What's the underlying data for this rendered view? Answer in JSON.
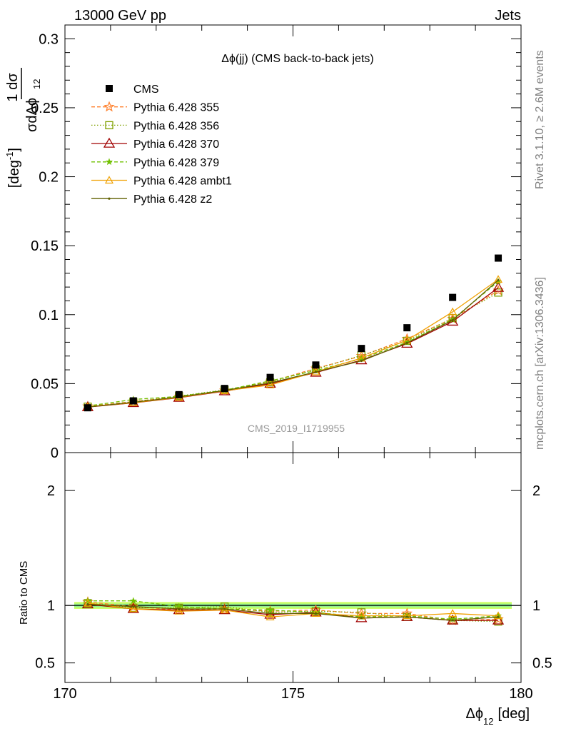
{
  "header": {
    "left": "13000 GeV pp",
    "right": "Jets",
    "side_top": "Rivet 3.1.10, ≥ 2.6M events",
    "side_bottom": "mcplots.cern.ch [arXiv:1306.3436]"
  },
  "chart_data": [
    {
      "type": "scatter",
      "panel": "main",
      "title": "Δϕ(jj) (CMS back-to-back jets)",
      "watermark": "CMS_2019_I1719955",
      "ylabel": {
        "prefix": "1",
        "num": "dσ",
        "den": "σdΔϕ",
        "den_sub": "12",
        "unit": "[deg",
        "unit_sup": "-1",
        "unit_close": "]"
      },
      "ylim": [
        0,
        0.31
      ],
      "xlim": [
        170,
        180
      ],
      "yticks": [
        {
          "v": 0,
          "label": "0"
        },
        {
          "v": 0.05,
          "label": "0.05"
        },
        {
          "v": 0.1,
          "label": "0.1"
        },
        {
          "v": 0.15,
          "label": "0.15"
        },
        {
          "v": 0.2,
          "label": "0.2"
        },
        {
          "v": 0.25,
          "label": "0.25"
        },
        {
          "v": 0.3,
          "label": "0.3"
        }
      ],
      "x": [
        170.5,
        171.5,
        172.5,
        173.5,
        174.5,
        175.5,
        176.5,
        177.5,
        178.5,
        179.5
      ],
      "series": [
        {
          "name": "CMS",
          "color": "#000000",
          "marker": "square",
          "line": "none",
          "values": [
            0.0325,
            0.0375,
            0.042,
            0.0465,
            0.0545,
            0.0635,
            0.0755,
            0.0905,
            0.1125,
            0.141
          ]
        },
        {
          "name": "Pythia 6.428 355",
          "color": "#ff7f2a",
          "marker": "star",
          "line": "dash",
          "values": [
            0.0335,
            0.037,
            0.0405,
            0.045,
            0.0515,
            0.061,
            0.07,
            0.0825,
            0.097,
            0.1175
          ]
        },
        {
          "name": "Pythia 6.428 356",
          "color": "#80a000",
          "marker": "open-square",
          "line": "dot",
          "values": [
            0.0333,
            0.0368,
            0.041,
            0.0455,
            0.051,
            0.0605,
            0.0705,
            0.081,
            0.0975,
            0.116
          ]
        },
        {
          "name": "Pythia 6.428 370",
          "color": "#a00000",
          "marker": "open-triangle",
          "line": "solid",
          "values": [
            0.033,
            0.036,
            0.0398,
            0.0445,
            0.05,
            0.058,
            0.067,
            0.079,
            0.095,
            0.1195
          ]
        },
        {
          "name": "Pythia 6.428 379",
          "color": "#70c000",
          "marker": "small-star",
          "line": "dash",
          "values": [
            0.0338,
            0.0385,
            0.0408,
            0.0452,
            0.052,
            0.0595,
            0.068,
            0.08,
            0.0965,
            0.124
          ]
        },
        {
          "name": "Pythia 6.428 ambt1",
          "color": "#f0a000",
          "marker": "open-triangle-small",
          "line": "solid",
          "values": [
            0.0332,
            0.0362,
            0.04,
            0.0448,
            0.049,
            0.0585,
            0.0685,
            0.0815,
            0.102,
            0.1255
          ]
        },
        {
          "name": "Pythia 6.428 z2",
          "color": "#606000",
          "marker": "dot",
          "line": "solid",
          "values": [
            0.033,
            0.0365,
            0.0403,
            0.045,
            0.0505,
            0.0585,
            0.0665,
            0.0795,
            0.096,
            0.125
          ]
        }
      ]
    },
    {
      "type": "line",
      "panel": "ratio",
      "ylabel": "Ratio to CMS",
      "xlabel": {
        "main": "Δϕ",
        "sub": "12",
        "unit": "[deg]"
      },
      "ylim": [
        0.33,
        2.33
      ],
      "xlim": [
        170,
        180
      ],
      "xticks": [
        {
          "v": 170,
          "label": "170"
        },
        {
          "v": 175,
          "label": "175"
        },
        {
          "v": 180,
          "label": "180"
        }
      ],
      "yticks": [
        {
          "v": 0.5,
          "label": "0.5"
        },
        {
          "v": 1,
          "label": "1"
        },
        {
          "v": 2,
          "label": "2"
        }
      ],
      "x": [
        170.5,
        171.5,
        172.5,
        173.5,
        174.5,
        175.5,
        176.5,
        177.5,
        178.5,
        179.5
      ],
      "band": {
        "inner": [
          0.985,
          1.015
        ],
        "outer": [
          0.97,
          1.03
        ]
      },
      "series": [
        {
          "name": "Pythia 6.428 355",
          "values": [
            1.03,
            0.99,
            0.96,
            0.97,
            0.95,
            0.96,
            0.93,
            0.93,
            0.87,
            0.88
          ]
        },
        {
          "name": "Pythia 6.428 356",
          "values": [
            1.02,
            0.98,
            0.98,
            0.99,
            0.94,
            0.95,
            0.94,
            0.9,
            0.87,
            0.86
          ]
        },
        {
          "name": "Pythia 6.428 370",
          "values": [
            1.01,
            0.97,
            0.96,
            0.96,
            0.92,
            0.94,
            0.89,
            0.9,
            0.87,
            0.87
          ]
        },
        {
          "name": "Pythia 6.428 379",
          "values": [
            1.04,
            1.04,
            0.99,
            0.97,
            0.96,
            0.94,
            0.9,
            0.91,
            0.88,
            0.91
          ]
        },
        {
          "name": "Pythia 6.428 ambt1",
          "values": [
            1.02,
            0.97,
            0.95,
            0.96,
            0.9,
            0.93,
            0.91,
            0.91,
            0.93,
            0.91
          ]
        },
        {
          "name": "Pythia 6.428 z2",
          "values": [
            1.01,
            0.99,
            0.97,
            0.97,
            0.93,
            0.93,
            0.89,
            0.9,
            0.87,
            0.9
          ]
        }
      ]
    }
  ]
}
